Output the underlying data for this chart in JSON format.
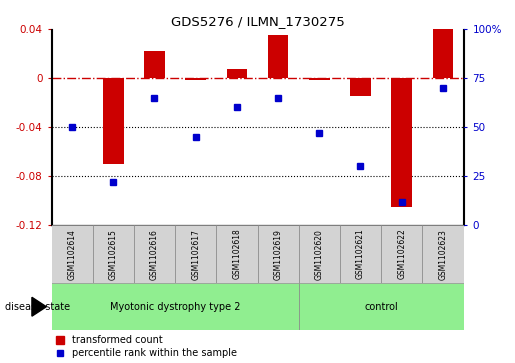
{
  "title": "GDS5276 / ILMN_1730275",
  "samples": [
    "GSM1102614",
    "GSM1102615",
    "GSM1102616",
    "GSM1102617",
    "GSM1102618",
    "GSM1102619",
    "GSM1102620",
    "GSM1102621",
    "GSM1102622",
    "GSM1102623"
  ],
  "red_values": [
    0.0,
    -0.07,
    0.022,
    -0.002,
    0.007,
    0.035,
    -0.002,
    -0.015,
    -0.105,
    0.04
  ],
  "blue_values": [
    50,
    22,
    65,
    45,
    60,
    65,
    47,
    30,
    12,
    70
  ],
  "group1_label": "Myotonic dystrophy type 2",
  "group1_count": 6,
  "group2_label": "control",
  "group2_count": 4,
  "group_color": "#90EE90",
  "sample_box_color": "#D3D3D3",
  "ylim_left": [
    -0.12,
    0.04
  ],
  "ylim_right": [
    0,
    100
  ],
  "yticks_left": [
    -0.12,
    -0.08,
    -0.04,
    0.0,
    0.04
  ],
  "ytick_labels_left": [
    "-0.12",
    "-0.08",
    "-0.04",
    "0",
    "0.04"
  ],
  "yticks_right": [
    0,
    25,
    50,
    75,
    100
  ],
  "ytick_labels_right": [
    "0",
    "25",
    "50",
    "75",
    "100%"
  ],
  "red_color": "#CC0000",
  "blue_color": "#0000CC",
  "bar_width": 0.5,
  "legend_red": "transformed count",
  "legend_blue": "percentile rank within the sample",
  "disease_label": "disease state"
}
